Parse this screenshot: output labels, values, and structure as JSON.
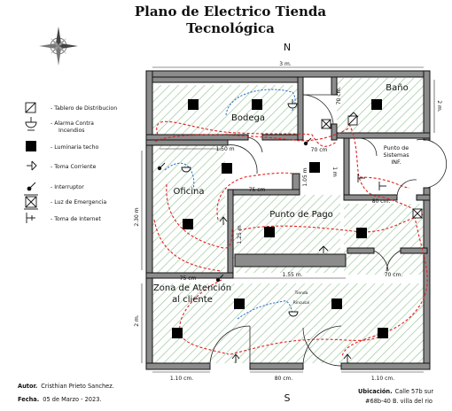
{
  "title": {
    "line1": "Plano de Electrico Tienda",
    "line2": "Tecnológica"
  },
  "compass": {
    "north": "N",
    "south": "S"
  },
  "rooms": {
    "bodega": "Bodega",
    "bano": "Baño",
    "oficina": "Oficina",
    "punto_pago": "Punto de Pago",
    "punto_sistemas": [
      "Punto de",
      "Sistemas",
      "INF."
    ],
    "atencion": [
      "Zona de Atención",
      "al cliente"
    ],
    "tienda": [
      "Tienda",
      "Rincusal"
    ]
  },
  "legend": {
    "items": [
      {
        "icon": "distribution-board-icon",
        "label": "- Tablero de Distribucion"
      },
      {
        "icon": "fire-alarm-icon",
        "label": [
          "- Alarma Contra",
          "Incendios"
        ]
      },
      {
        "icon": "ceiling-light-icon",
        "label": "- Luminaria techo"
      },
      {
        "icon": "power-outlet-icon",
        "label": "- Toma Corriente"
      },
      {
        "icon": "switch-icon",
        "label": "- Interruptor"
      },
      {
        "icon": "emergency-light-icon",
        "label": "- Luz de Emergencia"
      },
      {
        "icon": "internet-outlet-icon",
        "label": "- Toma de Internet"
      }
    ]
  },
  "dimensions": {
    "top_width": "3 m.",
    "bano_w": "70 cm.",
    "bano_h": "2 m.",
    "bodega_w": "1.50 m",
    "dim_70cm_a": "70 cm",
    "dim_1m": "1 m",
    "dim_105m": "1.05 m",
    "dim_75cm_a": "75 cm",
    "dim_80cm_a": "80 cm.",
    "left_height": "2.30 m",
    "dim_125m": "1.25 m",
    "dim_75cm_b": "75 cm",
    "dim_155m": "1.55 m.",
    "dim_70cm_b": "70 cm.",
    "left_lower": "2 m.",
    "bottom_left": "1.10 cm.",
    "bottom_mid": "80 cm.",
    "bottom_right": "1.10 cm."
  },
  "footer": {
    "author_label": "Autor.",
    "author": "Cristhian Prieto Sanchez.",
    "date_label": "Fecha.",
    "date": "05 de Marzo - 2023.",
    "location_label": "Ubicación.",
    "location_1": "Calle 57b sur",
    "location_2": "#68b-40 B. villa del rio"
  },
  "colors": {
    "electric_wiring": "#e02020",
    "network_wiring": "#2a6fc9",
    "wall_fill": "#8c8c8c",
    "floor_hatch": "#9cc99c"
  }
}
